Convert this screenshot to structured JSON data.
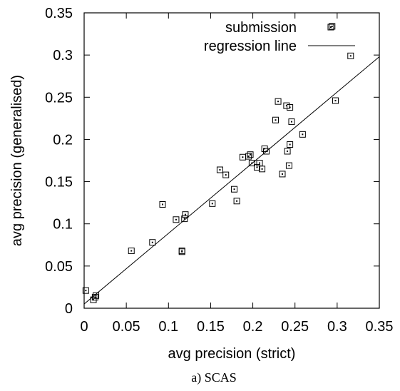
{
  "chart_data": {
    "type": "scatter",
    "xlabel": "avg precision (strict)",
    "ylabel": "avg precision (generalised)",
    "caption": "a) SCAS",
    "xlim": [
      0,
      0.35
    ],
    "ylim": [
      0,
      0.35
    ],
    "xticks": [
      "0",
      "0.05",
      "0.1",
      "0.15",
      "0.2",
      "0.25",
      "0.3",
      "0.35"
    ],
    "yticks": [
      "0",
      "0.05",
      "0.1",
      "0.15",
      "0.2",
      "0.25",
      "0.3",
      "0.35"
    ],
    "legend": {
      "position": "top-right",
      "entries": [
        "submission",
        "regression line"
      ]
    },
    "series": [
      {
        "name": "submission",
        "marker": "square",
        "points": [
          [
            0.002,
            0.021
          ],
          [
            0.011,
            0.01
          ],
          [
            0.013,
            0.013
          ],
          [
            0.014,
            0.015
          ],
          [
            0.056,
            0.068
          ],
          [
            0.081,
            0.078
          ],
          [
            0.093,
            0.123
          ],
          [
            0.109,
            0.105
          ],
          [
            0.116,
            0.068
          ],
          [
            0.116,
            0.067
          ],
          [
            0.119,
            0.106
          ],
          [
            0.12,
            0.111
          ],
          [
            0.152,
            0.124
          ],
          [
            0.161,
            0.164
          ],
          [
            0.168,
            0.158
          ],
          [
            0.178,
            0.141
          ],
          [
            0.181,
            0.127
          ],
          [
            0.188,
            0.179
          ],
          [
            0.195,
            0.18
          ],
          [
            0.197,
            0.182
          ],
          [
            0.199,
            0.172
          ],
          [
            0.205,
            0.167
          ],
          [
            0.208,
            0.172
          ],
          [
            0.211,
            0.165
          ],
          [
            0.214,
            0.189
          ],
          [
            0.216,
            0.186
          ],
          [
            0.227,
            0.223
          ],
          [
            0.23,
            0.245
          ],
          [
            0.235,
            0.159
          ],
          [
            0.24,
            0.24
          ],
          [
            0.241,
            0.186
          ],
          [
            0.243,
            0.169
          ],
          [
            0.244,
            0.194
          ],
          [
            0.244,
            0.238
          ],
          [
            0.246,
            0.221
          ],
          [
            0.259,
            0.206
          ],
          [
            0.294,
            0.334
          ],
          [
            0.298,
            0.246
          ],
          [
            0.316,
            0.299
          ]
        ]
      },
      {
        "name": "regression line",
        "type": "line",
        "points": [
          [
            0.0,
            0.005
          ],
          [
            0.35,
            0.298
          ]
        ]
      }
    ]
  }
}
